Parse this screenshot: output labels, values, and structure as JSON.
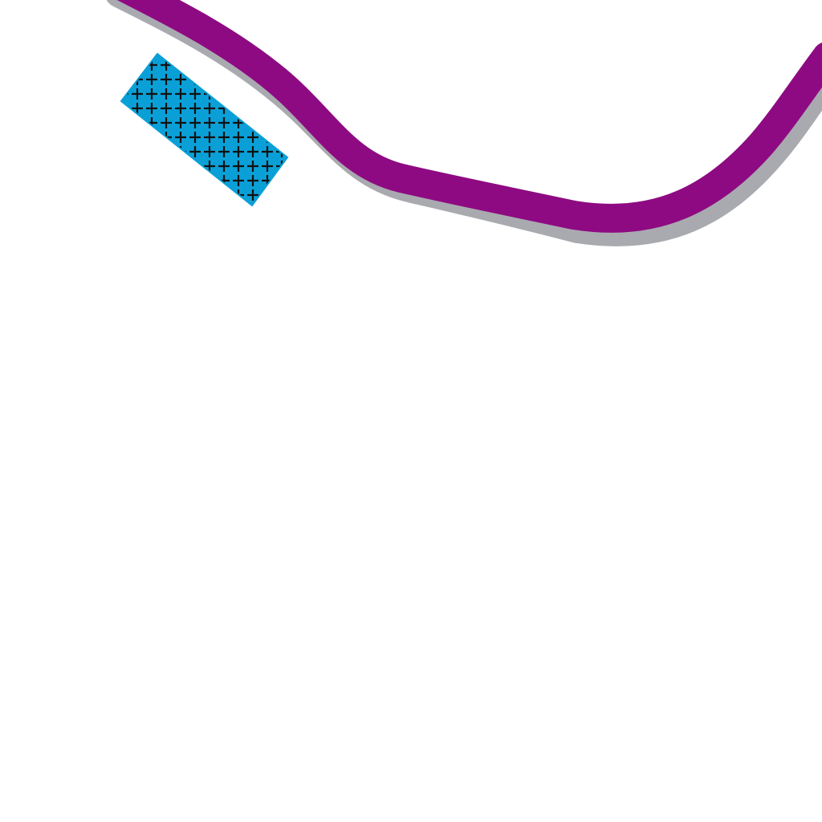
{
  "map": {
    "background_color": "#ffffff",
    "route": {
      "line_color": "#8e0a82",
      "casing_color": "#a9aaaf"
    },
    "area_feature": {
      "fill_color": "#0aa0d7",
      "pattern_color": "#111111",
      "pattern_symbol": "cross-hatch"
    }
  }
}
